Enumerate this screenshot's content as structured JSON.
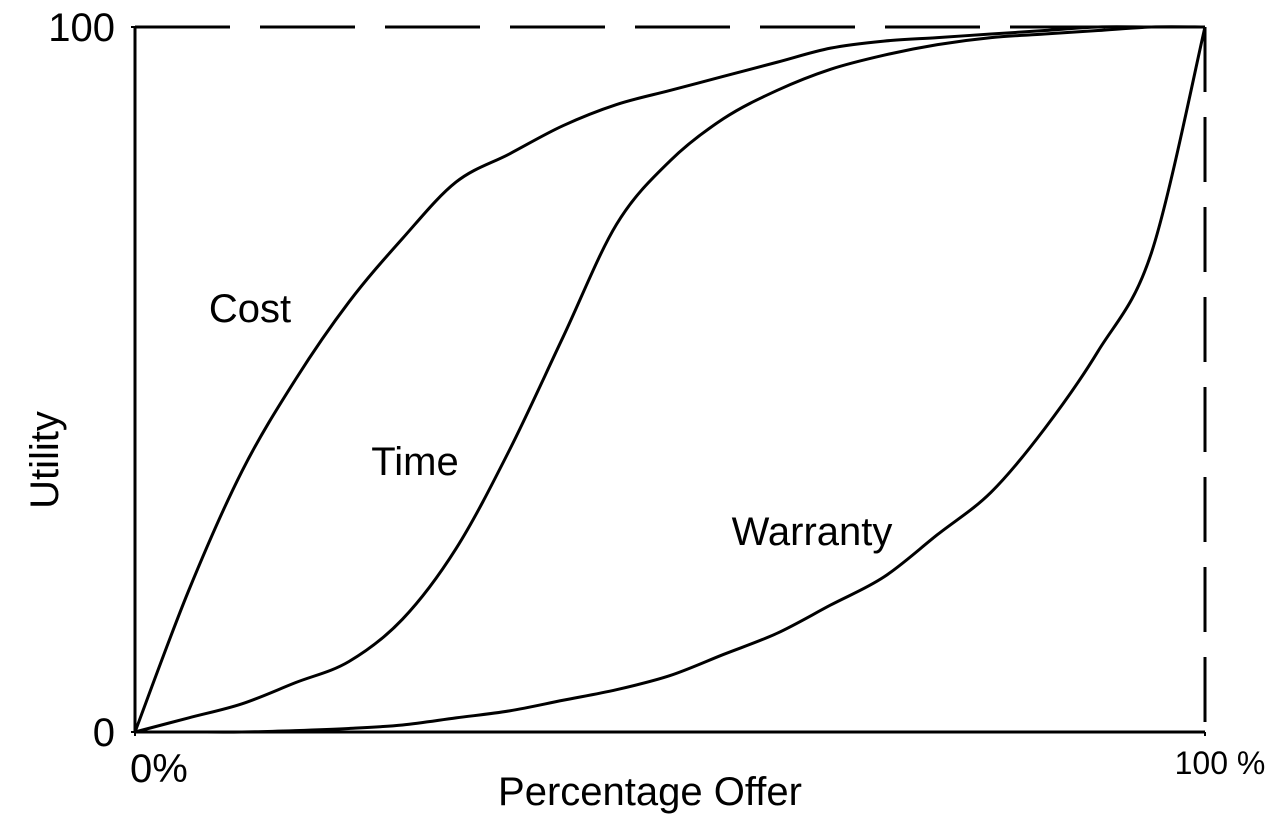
{
  "chart_data": {
    "type": "line",
    "x_label": "Percentage Offer",
    "y_label": "Utility",
    "x": [
      0,
      5,
      10,
      15,
      20,
      25,
      30,
      35,
      40,
      45,
      50,
      55,
      60,
      65,
      70,
      75,
      80,
      85,
      90,
      95,
      100
    ],
    "series": [
      {
        "name": "Cost",
        "color": "#000000",
        "values": [
          0,
          20,
          37,
          50,
          61,
          70,
          78,
          82,
          86,
          89,
          91,
          93,
          95,
          97,
          98,
          98.5,
          99,
          99.5,
          100,
          100,
          100
        ]
      },
      {
        "name": "Time",
        "color": "#000000",
        "values": [
          0,
          2,
          4,
          7,
          10,
          16,
          26,
          40,
          56,
          72,
          81,
          87,
          91,
          94,
          96,
          97.5,
          98.5,
          99,
          99.5,
          100,
          100
        ]
      },
      {
        "name": "Warranty",
        "color": "#000000",
        "values": [
          0,
          0,
          0,
          0.2,
          0.5,
          1,
          2,
          3,
          4.5,
          6,
          8,
          11,
          14,
          18,
          22,
          28,
          34,
          43,
          54,
          68,
          100
        ]
      }
    ],
    "xlim": [
      0,
      100
    ],
    "ylim": [
      0,
      100
    ],
    "xticks": [
      {
        "value": 0,
        "label": "0%"
      },
      {
        "value": 100,
        "label": "100 %"
      }
    ],
    "yticks": [
      0,
      100
    ],
    "grid": false
  }
}
